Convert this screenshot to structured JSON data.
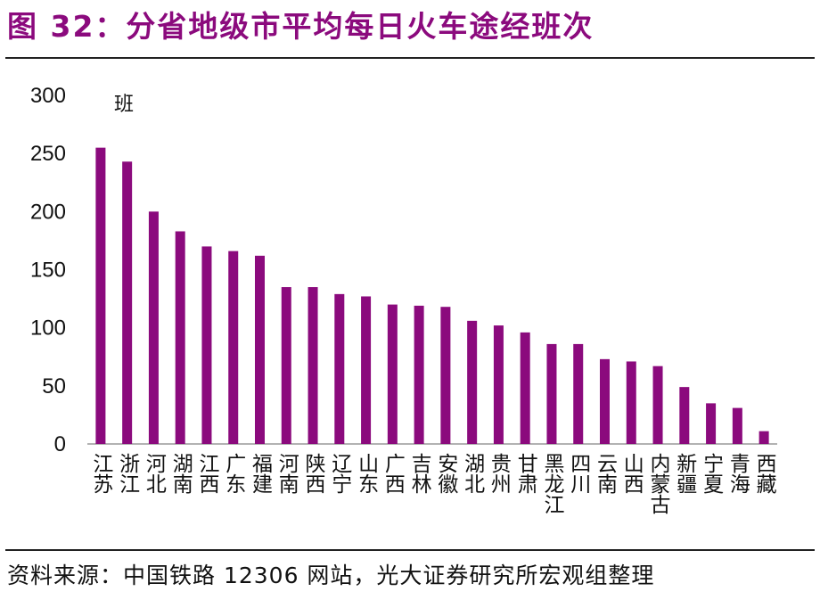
{
  "header": {
    "title": "图 32：分省地级市平均每日火车途经班次"
  },
  "footer": {
    "source": "资料来源：中国铁路 12306 网站，光大证券研究所宏观组整理"
  },
  "colors": {
    "bar": "#8b0a7d",
    "title": "#8b0a7d",
    "axis": "#999999"
  },
  "chart_data": {
    "type": "bar",
    "title": "",
    "xlabel": "",
    "ylabel": "班",
    "ylim": [
      0,
      300
    ],
    "yticks": [
      "0",
      "50",
      "100",
      "150",
      "200",
      "250",
      "300"
    ],
    "grid": false,
    "categories": [
      "江苏",
      "浙江",
      "河北",
      "湖南",
      "江西",
      "广东",
      "福建",
      "河南",
      "陕西",
      "辽宁",
      "山东",
      "广西",
      "吉林",
      "安徽",
      "湖北",
      "贵州",
      "甘肃",
      "黑龙江",
      "四川",
      "云南",
      "山西",
      "内蒙古",
      "新疆",
      "宁夏",
      "青海",
      "西藏"
    ],
    "values": [
      255,
      243,
      200,
      183,
      170,
      166,
      162,
      135,
      135,
      129,
      127,
      120,
      119,
      118,
      106,
      102,
      96,
      86,
      86,
      73,
      71,
      67,
      49,
      35,
      31,
      11
    ]
  }
}
